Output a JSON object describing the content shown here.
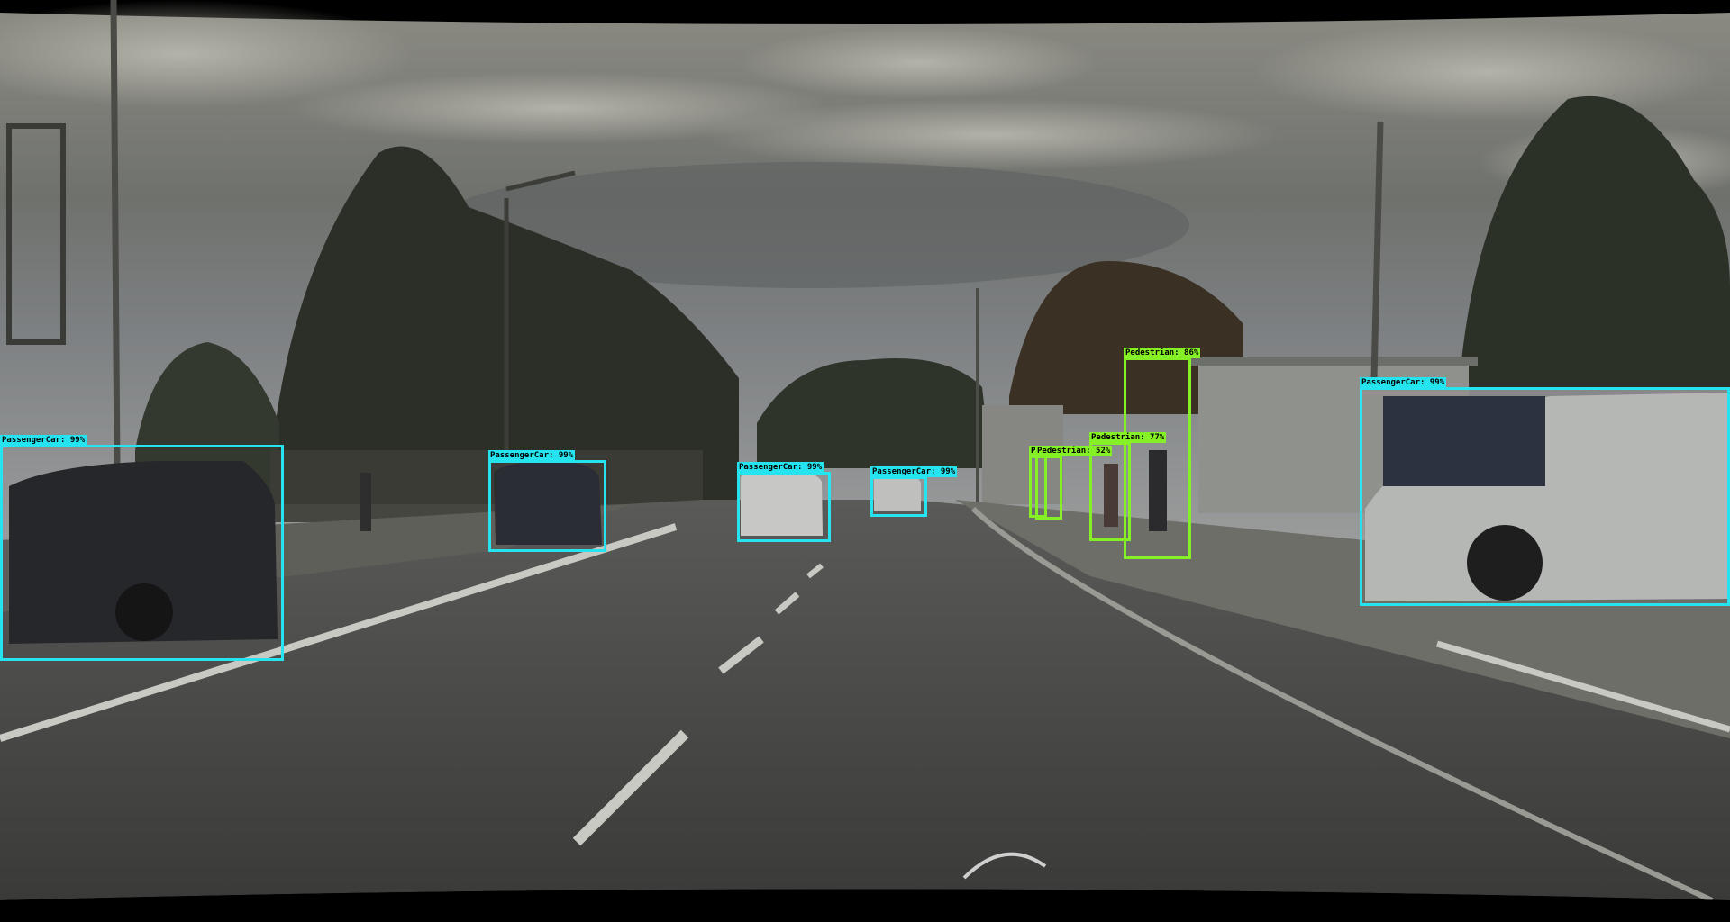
{
  "colors": {
    "passenger_car": "#26e4ef",
    "pedestrian": "#86f026"
  },
  "detections": [
    {
      "class": "PassengerCar",
      "label": "PassengerCar: 99%",
      "score": 0.99
    },
    {
      "class": "PassengerCar",
      "label": "PassengerCar: 99%",
      "score": 0.99
    },
    {
      "class": "PassengerCar",
      "label": "PassengerCar: 99%",
      "score": 0.99
    },
    {
      "class": "PassengerCar",
      "label": "PassengerCar: 99%",
      "score": 0.99
    },
    {
      "class": "PassengerCar",
      "label": "PassengerCar: 99%",
      "score": 0.99
    },
    {
      "class": "Pedestrian",
      "label": "Pedestrian: 86%",
      "score": 0.86
    },
    {
      "class": "Pedestrian",
      "label": "Pedestrian: 77%",
      "score": 0.77
    },
    {
      "class": "Pedestrian",
      "label": "Pedestrian: 52%",
      "score": 0.52
    },
    {
      "class": "Pedestrian",
      "label": "P",
      "score": null
    }
  ]
}
